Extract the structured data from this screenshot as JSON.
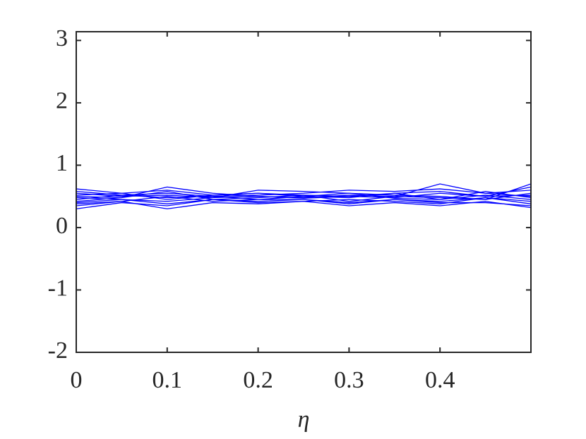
{
  "chart_data": {
    "type": "line",
    "xlabel": "η",
    "x": [
      0,
      0.05,
      0.1,
      0.15,
      0.2,
      0.25,
      0.3,
      0.35,
      0.4,
      0.45,
      0.5
    ],
    "xlim": [
      0,
      0.5
    ],
    "ylim": [
      -2,
      3.14
    ],
    "xticks": [
      0,
      0.1,
      0.2,
      0.3,
      0.4
    ],
    "yticks": [
      -2,
      -1,
      0,
      1,
      2,
      3
    ],
    "grid": false,
    "series": [
      {
        "color": "#0000ff",
        "values": [
          0.62,
          0.55,
          0.6,
          0.52,
          0.55,
          0.52,
          0.5,
          0.55,
          0.58,
          0.5,
          0.65
        ]
      },
      {
        "color": "#0000ff",
        "values": [
          0.35,
          0.42,
          0.3,
          0.4,
          0.38,
          0.42,
          0.35,
          0.4,
          0.35,
          0.42,
          0.32
        ]
      },
      {
        "color": "#0000ff",
        "values": [
          0.5,
          0.48,
          0.65,
          0.55,
          0.5,
          0.48,
          0.52,
          0.5,
          0.7,
          0.55,
          0.6
        ]
      },
      {
        "color": "#0000ff",
        "values": [
          0.4,
          0.45,
          0.38,
          0.45,
          0.42,
          0.45,
          0.4,
          0.45,
          0.42,
          0.48,
          0.38
        ]
      },
      {
        "color": "#0000ff",
        "values": [
          0.55,
          0.5,
          0.52,
          0.48,
          0.6,
          0.58,
          0.55,
          0.52,
          0.5,
          0.45,
          0.55
        ]
      },
      {
        "color": "#0000ff",
        "values": [
          0.45,
          0.52,
          0.48,
          0.5,
          0.45,
          0.5,
          0.48,
          0.55,
          0.45,
          0.52,
          0.45
        ]
      },
      {
        "color": "#0000ff",
        "values": [
          0.3,
          0.4,
          0.35,
          0.45,
          0.4,
          0.42,
          0.45,
          0.42,
          0.38,
          0.48,
          0.42
        ]
      },
      {
        "color": "#0000ff",
        "values": [
          0.58,
          0.52,
          0.55,
          0.5,
          0.52,
          0.55,
          0.6,
          0.58,
          0.62,
          0.55,
          0.5
        ]
      },
      {
        "color": "#0000ff",
        "values": [
          0.48,
          0.45,
          0.42,
          0.48,
          0.5,
          0.47,
          0.5,
          0.48,
          0.55,
          0.5,
          0.52
        ]
      },
      {
        "color": "#0000ff",
        "values": [
          0.42,
          0.48,
          0.58,
          0.45,
          0.48,
          0.52,
          0.42,
          0.5,
          0.48,
          0.45,
          0.7
        ]
      },
      {
        "color": "#0000ff",
        "values": [
          0.52,
          0.55,
          0.45,
          0.52,
          0.55,
          0.5,
          0.55,
          0.47,
          0.45,
          0.58,
          0.48
        ]
      },
      {
        "color": "#0000ff",
        "values": [
          0.38,
          0.42,
          0.5,
          0.42,
          0.45,
          0.45,
          0.38,
          0.45,
          0.4,
          0.4,
          0.35
        ]
      }
    ]
  }
}
